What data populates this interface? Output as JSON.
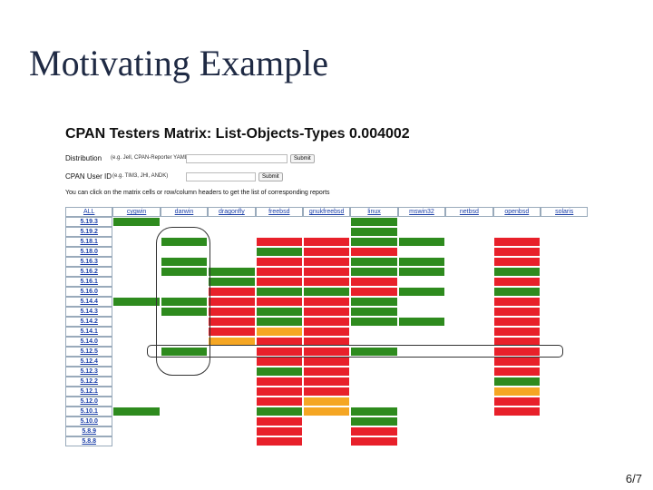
{
  "slide": {
    "title": "Motivating Example",
    "page_number": "6/7"
  },
  "page": {
    "heading": "CPAN Testers Matrix: List-Objects-Types 0.004002",
    "form": [
      {
        "label": "Distribution",
        "hint": "(e.g. Jell, CPAN-Reporter YAML-Syck)",
        "button": "Submit"
      },
      {
        "label": "CPAN User ID",
        "hint": "(e.g. TIM3, JHI, ANDK)",
        "button": "Submit"
      }
    ],
    "note": "You can click on the matrix cells or row/column headers to get the list of corresponding reports"
  },
  "matrix": {
    "columns": [
      "ALL",
      "cygwin",
      "darwin",
      "dragonfly",
      "freebsd",
      "gnukfreebsd",
      "linux",
      "mswin32",
      "netbsd",
      "openbsd",
      "solaris"
    ],
    "rows": [
      {
        "version": "5.19.3",
        "cells": [
          "#2e8b1e",
          null,
          null,
          null,
          null,
          "#2e8b1e",
          null,
          null,
          null,
          null
        ]
      },
      {
        "version": "5.19.2",
        "cells": [
          null,
          null,
          null,
          null,
          null,
          "#2e8b1e",
          null,
          null,
          null,
          null
        ]
      },
      {
        "version": "5.18.1",
        "cells": [
          null,
          "#2e8b1e",
          null,
          "#e8202a",
          "#e8202a",
          "#2e8b1e",
          "#2e8b1e",
          null,
          "#e8202a",
          null
        ]
      },
      {
        "version": "5.18.0",
        "cells": [
          null,
          null,
          null,
          "#2e8b1e",
          "#e8202a",
          "#e8202a",
          null,
          null,
          "#e8202a",
          null
        ]
      },
      {
        "version": "5.16.3",
        "cells": [
          null,
          "#2e8b1e",
          null,
          "#e8202a",
          "#e8202a",
          "#2e8b1e",
          "#2e8b1e",
          null,
          "#e8202a",
          null
        ]
      },
      {
        "version": "5.16.2",
        "cells": [
          null,
          "#2e8b1e",
          "#2e8b1e",
          "#e8202a",
          "#e8202a",
          "#2e8b1e",
          "#2e8b1e",
          null,
          "#2e8b1e",
          null
        ]
      },
      {
        "version": "5.16.1",
        "cells": [
          null,
          null,
          "#2e8b1e",
          "#e8202a",
          "#e8202a",
          "#e8202a",
          null,
          null,
          "#e8202a",
          null
        ]
      },
      {
        "version": "5.16.0",
        "cells": [
          null,
          null,
          "#e8202a",
          "#2e8b1e",
          "#2e8b1e",
          "#e8202a",
          "#2e8b1e",
          null,
          "#2e8b1e",
          null
        ]
      },
      {
        "version": "5.14.4",
        "cells": [
          "#2e8b1e",
          "#2e8b1e",
          "#e8202a",
          "#e8202a",
          "#e8202a",
          "#2e8b1e",
          null,
          null,
          "#e8202a",
          null
        ]
      },
      {
        "version": "5.14.3",
        "cells": [
          null,
          "#2e8b1e",
          "#e8202a",
          "#2e8b1e",
          "#e8202a",
          "#2e8b1e",
          null,
          null,
          "#e8202a",
          null
        ]
      },
      {
        "version": "5.14.2",
        "cells": [
          null,
          null,
          "#e8202a",
          "#2e8b1e",
          "#e8202a",
          "#2e8b1e",
          "#2e8b1e",
          null,
          "#e8202a",
          null
        ]
      },
      {
        "version": "5.14.1",
        "cells": [
          null,
          null,
          "#e8202a",
          "#f5a623",
          "#e8202a",
          null,
          null,
          null,
          "#e8202a",
          null
        ]
      },
      {
        "version": "5.14.0",
        "cells": [
          null,
          null,
          "#f5a623",
          "#e8202a",
          "#e8202a",
          null,
          null,
          null,
          "#e8202a",
          null
        ]
      },
      {
        "version": "5.12.5",
        "cells": [
          null,
          "#2e8b1e",
          null,
          "#e8202a",
          "#e8202a",
          "#2e8b1e",
          null,
          null,
          "#e8202a",
          null
        ]
      },
      {
        "version": "5.12.4",
        "cells": [
          null,
          null,
          null,
          "#e8202a",
          "#e8202a",
          null,
          null,
          null,
          "#e8202a",
          null
        ]
      },
      {
        "version": "5.12.3",
        "cells": [
          null,
          null,
          null,
          "#2e8b1e",
          "#e8202a",
          null,
          null,
          null,
          "#e8202a",
          null
        ]
      },
      {
        "version": "5.12.2",
        "cells": [
          null,
          null,
          null,
          "#e8202a",
          "#e8202a",
          null,
          null,
          null,
          "#2e8b1e",
          null
        ]
      },
      {
        "version": "5.12.1",
        "cells": [
          null,
          null,
          null,
          "#e8202a",
          "#e8202a",
          null,
          null,
          null,
          "#f5a623",
          null
        ]
      },
      {
        "version": "5.12.0",
        "cells": [
          null,
          null,
          null,
          "#e8202a",
          "#f5a623",
          null,
          null,
          null,
          "#e8202a",
          null
        ]
      },
      {
        "version": "5.10.1",
        "cells": [
          "#2e8b1e",
          null,
          null,
          "#2e8b1e",
          "#f5a623",
          "#2e8b1e",
          null,
          null,
          "#e8202a",
          null
        ]
      },
      {
        "version": "5.10.0",
        "cells": [
          null,
          null,
          null,
          "#e8202a",
          null,
          "#2e8b1e",
          null,
          null,
          null,
          null
        ]
      },
      {
        "version": "5.8.9",
        "cells": [
          null,
          null,
          null,
          "#e8202a",
          null,
          "#e8202a",
          null,
          null,
          null,
          null
        ]
      },
      {
        "version": "5.8.8",
        "cells": [
          null,
          null,
          null,
          "#e8202a",
          null,
          "#e8202a",
          null,
          null,
          null,
          null
        ]
      }
    ]
  }
}
